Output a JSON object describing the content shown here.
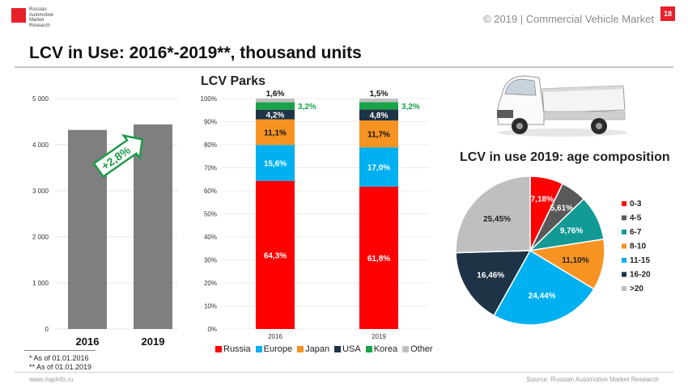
{
  "logo": {
    "text_lines": [
      "Russian",
      "Automotive",
      "Market",
      "Research"
    ]
  },
  "header": {
    "right_text": "© 2019  | Commercial Vehicle Market",
    "page_number": "18"
  },
  "title": "LCV in Use: 2016*-2019**, thousand units",
  "colors": {
    "brand_red": "#e8202a",
    "bar_gray": "#7f7f7f",
    "growth_green": "#1f9a4a",
    "russia": "#ff0000",
    "europe": "#00b0f0",
    "japan": "#f79322",
    "usa": "#1f3346",
    "korea": "#19a349",
    "other": "#bfbfbf"
  },
  "footnotes": [
    "* As of 01.01.2016",
    "** As of 01.01.2019"
  ],
  "footer": {
    "left": "www.napinfo.ru",
    "right": "Source: Russian Automotive Market Research"
  },
  "chart_data": [
    {
      "id": "lcv-in-use",
      "type": "bar",
      "categories": [
        "2016",
        "2019"
      ],
      "values": [
        4320,
        4440
      ],
      "ylim": [
        0,
        5000
      ],
      "yticks": [
        0,
        1000,
        2000,
        3000,
        4000,
        5000
      ],
      "ytick_labels": [
        "0",
        "1 000",
        "2 000",
        "3 000",
        "4 000",
        "5 000"
      ],
      "annotation": "+2,8%"
    },
    {
      "id": "lcv-parks",
      "type": "bar",
      "stacked": true,
      "title": "LCV Parks",
      "categories": [
        "2016",
        "2019"
      ],
      "ylim": [
        0,
        100
      ],
      "yticks": [
        0,
        10,
        20,
        30,
        40,
        50,
        60,
        70,
        80,
        90,
        100
      ],
      "ytick_labels": [
        "0%",
        "10%",
        "20%",
        "30%",
        "40%",
        "50%",
        "60%",
        "70%",
        "80%",
        "90%",
        "100%"
      ],
      "series": [
        {
          "name": "Russia",
          "values": [
            64.3,
            61.8
          ],
          "labels": [
            "64,3%",
            "61,8%"
          ]
        },
        {
          "name": "Europe",
          "values": [
            15.6,
            17.0
          ],
          "labels": [
            "15,6%",
            "17,0%"
          ]
        },
        {
          "name": "Japan",
          "values": [
            11.1,
            11.7
          ],
          "labels": [
            "11,1%",
            "11,7%"
          ]
        },
        {
          "name": "USA",
          "values": [
            4.2,
            4.8
          ],
          "labels": [
            "4,2%",
            "4,8%"
          ]
        },
        {
          "name": "Korea",
          "values": [
            3.2,
            3.2
          ],
          "labels": [
            "3,2%",
            "3,2%"
          ]
        },
        {
          "name": "Other",
          "values": [
            1.6,
            1.5
          ],
          "labels": [
            "1,6%",
            "1,5%"
          ]
        }
      ]
    },
    {
      "id": "age-composition",
      "type": "pie",
      "title": "LCV in use 2019: age composition",
      "slices": [
        {
          "label": "0-3",
          "value": 7.18,
          "text": "7,18%"
        },
        {
          "label": "4-5",
          "value": 5.61,
          "text": "5,61%"
        },
        {
          "label": "6-7",
          "value": 9.76,
          "text": "9,76%"
        },
        {
          "label": "8-10",
          "value": 11.1,
          "text": "11,10%"
        },
        {
          "label": "11-15",
          "value": 24.44,
          "text": "24,44%"
        },
        {
          "label": "16-20",
          "value": 16.46,
          "text": "16,46%"
        },
        {
          "label": ">20",
          "value": 25.45,
          "text": "25,45%"
        }
      ],
      "colors": [
        "#ff0000",
        "#595959",
        "#129a96",
        "#f79322",
        "#00b0f0",
        "#1f3346",
        "#bfbfbf"
      ]
    }
  ]
}
